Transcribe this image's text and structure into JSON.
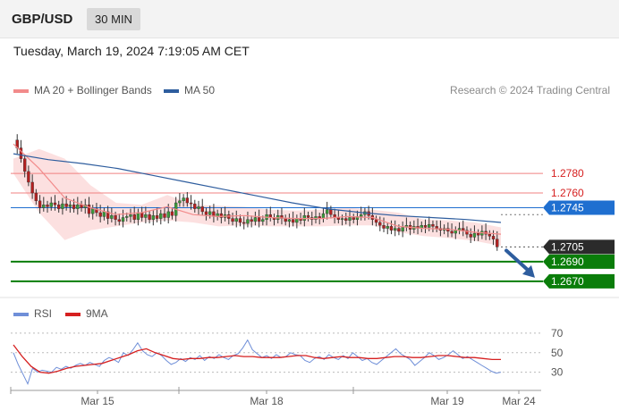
{
  "header": {
    "pair": "GBP/USD",
    "timeframe": "30 MIN"
  },
  "timestamp": "Tuesday, March 19, 2024 7:19:05 AM CET",
  "credit": "Research © 2024 Trading Central",
  "legend_main": [
    {
      "label": "MA 20 + Bollinger Bands",
      "color": "#f28b8b"
    },
    {
      "label": "MA 50",
      "color": "#2e5d9e"
    }
  ],
  "legend_rsi": [
    {
      "label": "RSI",
      "color": "#6f8fd8"
    },
    {
      "label": "9MA",
      "color": "#d62020"
    }
  ],
  "colors": {
    "up": "#3a9a3a",
    "down": "#b52020",
    "support": "#0a7d0a",
    "resistance": "#f08080",
    "pivot": "#1f6fd0",
    "last": "#2b2b2b"
  },
  "chart_data": [
    {
      "type": "candlestick",
      "ylim": [
        1.2658,
        1.2822
      ],
      "levels": [
        {
          "value": 1.278,
          "label": "1.2780",
          "kind": "resistance"
        },
        {
          "value": 1.276,
          "label": "1.2760",
          "kind": "resistance"
        },
        {
          "value": 1.2745,
          "label": "1.2745",
          "kind": "pivot"
        },
        {
          "value": 1.2705,
          "label": "1.2705",
          "kind": "last"
        },
        {
          "value": 1.269,
          "label": "1.2690",
          "kind": "support"
        },
        {
          "value": 1.267,
          "label": "1.2670",
          "kind": "support"
        }
      ],
      "close": [
        1.2814,
        1.2806,
        1.2795,
        1.2782,
        1.2771,
        1.276,
        1.2752,
        1.2745,
        1.2748,
        1.2746,
        1.275,
        1.2748,
        1.2744,
        1.2749,
        1.2746,
        1.2748,
        1.2744,
        1.2748,
        1.2745,
        1.2748,
        1.2739,
        1.2744,
        1.274,
        1.2736,
        1.2741,
        1.2734,
        1.2737,
        1.2733,
        1.2731,
        1.2735,
        1.2736,
        1.2738,
        1.2733,
        1.274,
        1.2735,
        1.2738,
        1.2733,
        1.2737,
        1.2734,
        1.2739,
        1.2735,
        1.2741,
        1.2737,
        1.275,
        1.2752,
        1.2755,
        1.275,
        1.2749,
        1.2744,
        1.2746,
        1.2741,
        1.2738,
        1.2741,
        1.2736,
        1.2739,
        1.2735,
        1.2738,
        1.2734,
        1.2731,
        1.2734,
        1.273,
        1.2729,
        1.2733,
        1.2731,
        1.2735,
        1.2731,
        1.2733,
        1.2738,
        1.2735,
        1.2733,
        1.2737,
        1.2734,
        1.2731,
        1.2733,
        1.273,
        1.2734,
        1.2732,
        1.2737,
        1.2735,
        1.2733,
        1.2736,
        1.2734,
        1.2739,
        1.2743,
        1.2738,
        1.2735,
        1.2733,
        1.2734,
        1.2732,
        1.2735,
        1.2733,
        1.2736,
        1.2738,
        1.2741,
        1.2737,
        1.2733,
        1.273,
        1.2727,
        1.2724,
        1.2726,
        1.2722,
        1.2724,
        1.2721,
        1.2725,
        1.2727,
        1.2723,
        1.2726,
        1.2724,
        1.2727,
        1.2725,
        1.2728,
        1.2726,
        1.2724,
        1.2722,
        1.2724,
        1.2721,
        1.2719,
        1.2722,
        1.2724,
        1.2722,
        1.2718,
        1.2715,
        1.2719,
        1.2717,
        1.2721,
        1.2718,
        1.2716,
        1.2713,
        1.2705
      ],
      "ma50": [
        1.28,
        1.2794,
        1.279,
        1.2785,
        1.2778,
        1.2771,
        1.2764,
        1.2757,
        1.275,
        1.2744,
        1.274,
        1.2737,
        1.2735,
        1.2733,
        1.273
      ],
      "ma20": [
        1.281,
        1.2785,
        1.2755,
        1.2745,
        1.2738,
        1.274,
        1.2746,
        1.2738,
        1.2736,
        1.2737,
        1.2735,
        1.2734,
        1.2734,
        1.2736,
        1.2735,
        1.2726,
        1.2724,
        1.2723,
        1.272,
        1.2718
      ],
      "bb_upper": [
        1.2795,
        1.2805,
        1.2795,
        1.2768,
        1.275,
        1.2748,
        1.2758,
        1.2748,
        1.2747,
        1.2746,
        1.2743,
        1.2742,
        1.2743,
        1.2745,
        1.2743,
        1.274,
        1.2733,
        1.2732,
        1.273,
        1.2725
      ],
      "bb_lower": [
        1.278,
        1.274,
        1.2712,
        1.2722,
        1.2726,
        1.273,
        1.2732,
        1.273,
        1.2726,
        1.2727,
        1.2726,
        1.2726,
        1.2726,
        1.2727,
        1.2727,
        1.272,
        1.2716,
        1.2714,
        1.2711,
        1.2706
      ],
      "forecast": {
        "from": 1.2705,
        "to": 1.267
      }
    },
    {
      "type": "line",
      "ylim": [
        15,
        80
      ],
      "ticks": [
        "70",
        "50",
        "30"
      ],
      "tick_values": [
        70,
        50,
        30
      ],
      "x_ticks": [
        "Mar 15",
        "Mar 18",
        "Mar 19",
        "Mar 24"
      ],
      "series": [
        {
          "name": "RSI",
          "values": [
            50,
            38,
            28,
            18,
            34,
            30,
            32,
            31,
            30,
            35,
            33,
            36,
            34,
            37,
            39,
            37,
            40,
            38,
            36,
            42,
            45,
            43,
            40,
            50,
            47,
            53,
            60,
            52,
            48,
            46,
            50,
            47,
            42,
            38,
            40,
            44,
            41,
            45,
            43,
            47,
            42,
            46,
            44,
            48,
            45,
            43,
            47,
            49,
            55,
            63,
            53,
            49,
            45,
            47,
            44,
            48,
            45,
            46,
            50,
            48,
            47,
            42,
            40,
            44,
            46,
            43,
            48,
            45,
            43,
            47,
            44,
            50,
            46,
            42,
            44,
            40,
            38,
            42,
            46,
            50,
            54,
            49,
            46,
            43,
            37,
            41,
            45,
            50,
            47,
            43,
            45,
            48,
            52,
            48,
            44,
            46,
            43,
            40,
            37,
            34,
            31,
            29,
            30
          ]
        },
        {
          "name": "9MA",
          "values": [
            58,
            46,
            36,
            30,
            29,
            31,
            34,
            36,
            37,
            38,
            39,
            42,
            45,
            48,
            52,
            54,
            50,
            47,
            44,
            43,
            44,
            44,
            45,
            45,
            46,
            47,
            46,
            46,
            45,
            45,
            45,
            46,
            47,
            47,
            45,
            44,
            45,
            46,
            45,
            45,
            44,
            44,
            45,
            46,
            46,
            45,
            45,
            46,
            47,
            47,
            46,
            45,
            45,
            44,
            43,
            43
          ]
        }
      ]
    }
  ]
}
